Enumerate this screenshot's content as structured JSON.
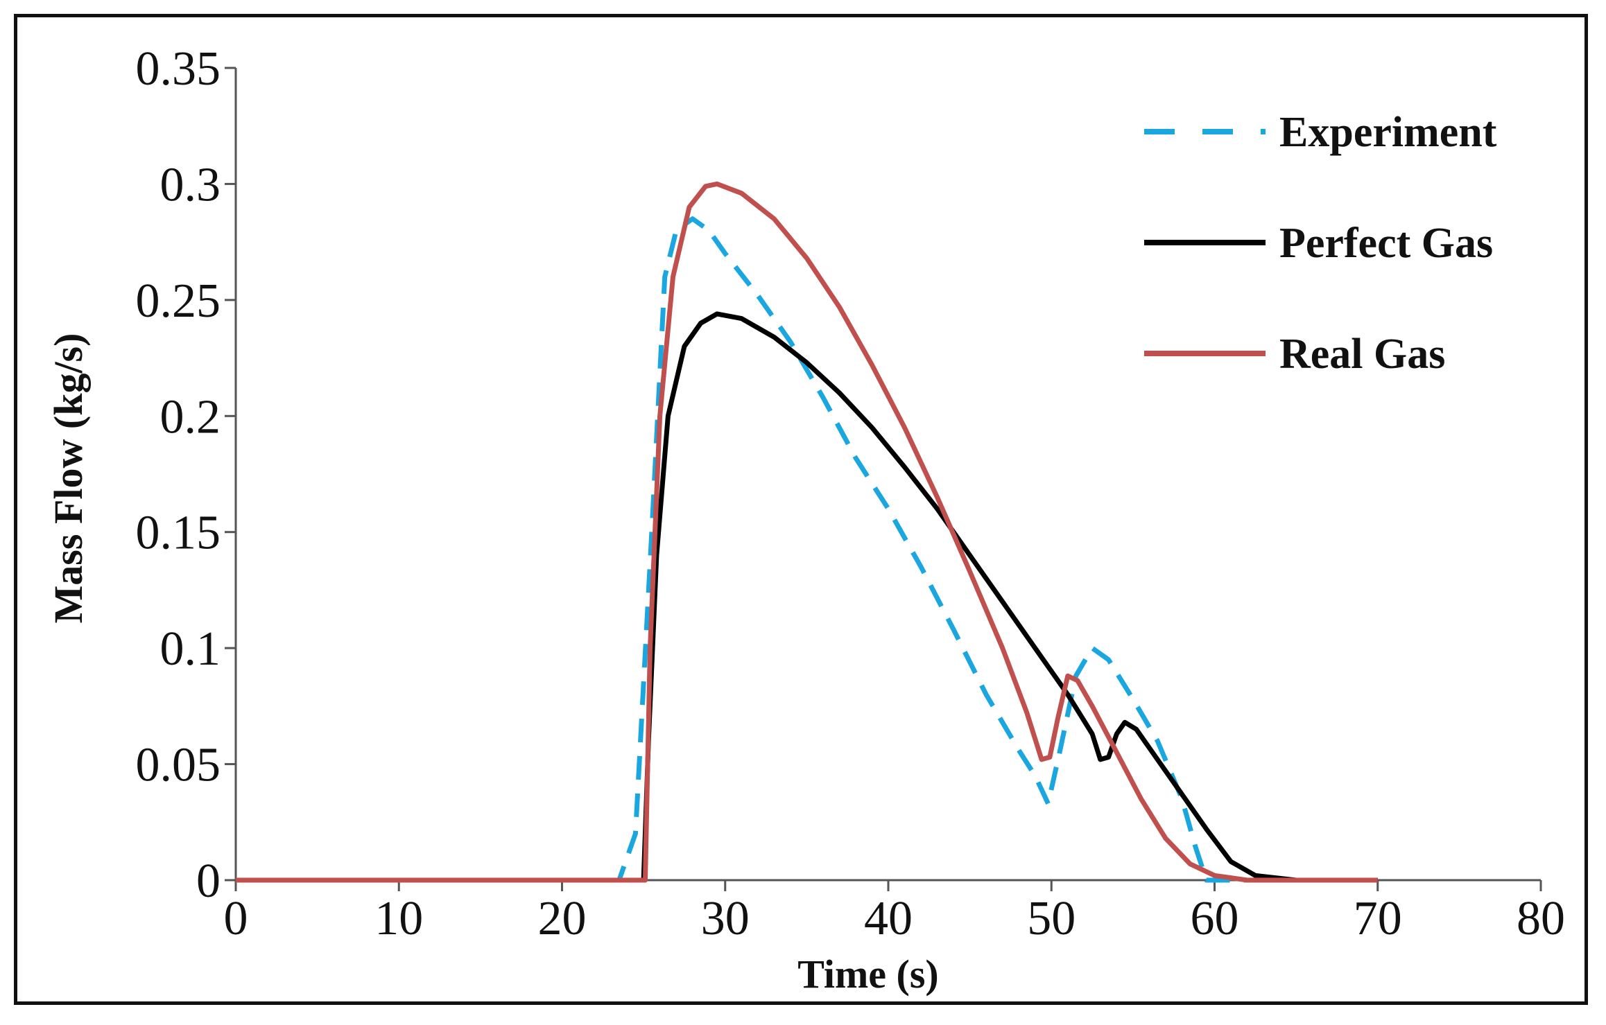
{
  "chart_data": {
    "type": "line",
    "title": "",
    "xlabel": "Time (s)",
    "ylabel": "Mass Flow (kg/s)",
    "xlim": [
      0,
      80
    ],
    "ylim": [
      0,
      0.35
    ],
    "xticks": [
      0,
      10,
      20,
      30,
      40,
      50,
      60,
      70,
      80
    ],
    "xtick_labels": [
      "0",
      "10",
      "20",
      "30",
      "40",
      "50",
      "60",
      "70",
      "80"
    ],
    "yticks": [
      0,
      0.05,
      0.1,
      0.15,
      0.2,
      0.25,
      0.3,
      0.35
    ],
    "ytick_labels": [
      "0",
      "0.05",
      "0.1",
      "0.15",
      "0.2",
      "0.25",
      "0.3",
      "0.35"
    ],
    "grid": false,
    "legend_position": "top-right",
    "series": [
      {
        "name": "Experiment",
        "color": "#1aa7e0",
        "style": "dashed",
        "points": [
          [
            0,
            0
          ],
          [
            23.5,
            0
          ],
          [
            24.5,
            0.02
          ],
          [
            25.5,
            0.15
          ],
          [
            26.3,
            0.26
          ],
          [
            27,
            0.28
          ],
          [
            28,
            0.285
          ],
          [
            29,
            0.28
          ],
          [
            30,
            0.27
          ],
          [
            32,
            0.252
          ],
          [
            34,
            0.232
          ],
          [
            36,
            0.208
          ],
          [
            38,
            0.182
          ],
          [
            40,
            0.16
          ],
          [
            42,
            0.135
          ],
          [
            44,
            0.108
          ],
          [
            46,
            0.08
          ],
          [
            48,
            0.056
          ],
          [
            49,
            0.045
          ],
          [
            49.8,
            0.033
          ],
          [
            50.5,
            0.055
          ],
          [
            51.5,
            0.088
          ],
          [
            52.5,
            0.1
          ],
          [
            53.5,
            0.095
          ],
          [
            55,
            0.078
          ],
          [
            56.5,
            0.06
          ],
          [
            58,
            0.035
          ],
          [
            58.8,
            0.015
          ],
          [
            59.5,
            0
          ],
          [
            70,
            0
          ]
        ]
      },
      {
        "name": "Perfect Gas",
        "color": "#000000",
        "style": "solid",
        "points": [
          [
            0,
            0
          ],
          [
            25,
            0
          ],
          [
            25.3,
            0.06
          ],
          [
            25.8,
            0.14
          ],
          [
            26.5,
            0.2
          ],
          [
            27.5,
            0.23
          ],
          [
            28.5,
            0.24
          ],
          [
            29.5,
            0.244
          ],
          [
            31,
            0.242
          ],
          [
            33,
            0.234
          ],
          [
            35,
            0.223
          ],
          [
            37,
            0.21
          ],
          [
            39,
            0.195
          ],
          [
            41,
            0.178
          ],
          [
            43,
            0.16
          ],
          [
            45,
            0.14
          ],
          [
            47,
            0.12
          ],
          [
            49,
            0.1
          ],
          [
            51,
            0.08
          ],
          [
            52.5,
            0.063
          ],
          [
            53,
            0.052
          ],
          [
            53.5,
            0.053
          ],
          [
            54,
            0.063
          ],
          [
            54.5,
            0.068
          ],
          [
            55.2,
            0.065
          ],
          [
            56.5,
            0.052
          ],
          [
            58,
            0.037
          ],
          [
            59.5,
            0.022
          ],
          [
            61,
            0.008
          ],
          [
            62.5,
            0.002
          ],
          [
            65,
            0
          ],
          [
            70,
            0
          ]
        ]
      },
      {
        "name": "Real Gas",
        "color": "#c0504d",
        "style": "solid",
        "points": [
          [
            0,
            0
          ],
          [
            25.1,
            0
          ],
          [
            25.4,
            0.1
          ],
          [
            26,
            0.2
          ],
          [
            26.8,
            0.26
          ],
          [
            27.8,
            0.29
          ],
          [
            28.8,
            0.299
          ],
          [
            29.5,
            0.3
          ],
          [
            31,
            0.296
          ],
          [
            33,
            0.285
          ],
          [
            35,
            0.268
          ],
          [
            37,
            0.247
          ],
          [
            39,
            0.222
          ],
          [
            41,
            0.195
          ],
          [
            43,
            0.165
          ],
          [
            45,
            0.133
          ],
          [
            47,
            0.1
          ],
          [
            48.5,
            0.072
          ],
          [
            49.4,
            0.052
          ],
          [
            49.9,
            0.053
          ],
          [
            50.4,
            0.07
          ],
          [
            51,
            0.088
          ],
          [
            51.6,
            0.086
          ],
          [
            52.5,
            0.075
          ],
          [
            54,
            0.055
          ],
          [
            55.5,
            0.035
          ],
          [
            57,
            0.018
          ],
          [
            58.5,
            0.007
          ],
          [
            60,
            0.002
          ],
          [
            62,
            0
          ],
          [
            70,
            0
          ]
        ]
      }
    ]
  }
}
